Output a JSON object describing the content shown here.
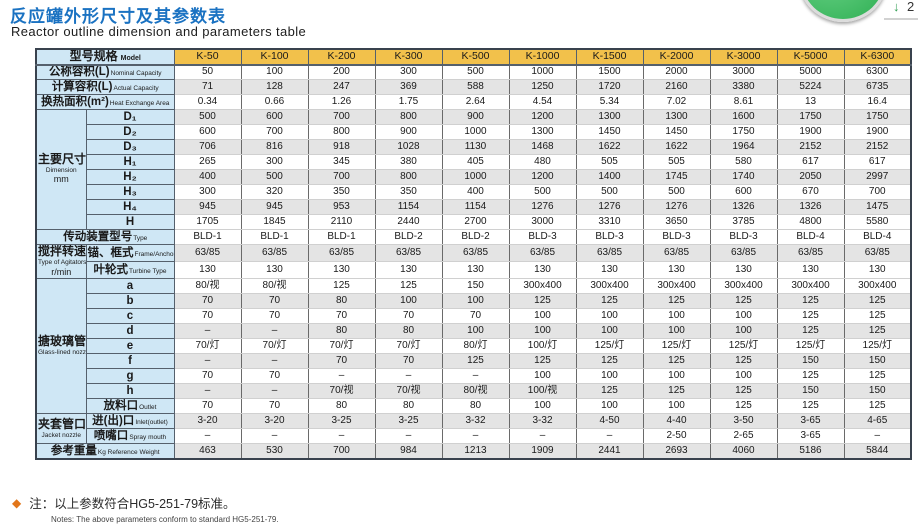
{
  "page": {
    "title_zh": "反应罐外形尺寸及其参数表",
    "title_en": "Reactor outline dimension and parameters table"
  },
  "badge": {
    "arrow": "↓",
    "count": "2"
  },
  "colors": {
    "title_blue": "#1a72c2",
    "header_orange": "#f2c14b",
    "label_blue": "#cfe7f5",
    "stripe_gray": "#e4e4e4",
    "badge_green": "#3fbf63",
    "note_orange": "#e2761b"
  },
  "table": {
    "header": {
      "zh": "型号规格",
      "en": "Model"
    },
    "models": [
      "K-50",
      "K-100",
      "K-200",
      "K-300",
      "K-500",
      "K-1000",
      "K-1500",
      "K-2000",
      "K-3000",
      "K-5000",
      "K-6300"
    ],
    "rows": [
      {
        "label": {
          "zh": "公称容积(L)",
          "en": "Nominal Capacity",
          "wide": true
        },
        "shade": false,
        "values": [
          "50",
          "100",
          "200",
          "300",
          "500",
          "1000",
          "1500",
          "2000",
          "3000",
          "5000",
          "6300"
        ]
      },
      {
        "label": {
          "zh": "计算容积(L)",
          "en": "Actual Capacity",
          "wide": true
        },
        "shade": true,
        "values": [
          "71",
          "128",
          "247",
          "369",
          "588",
          "1250",
          "1720",
          "2160",
          "3380",
          "5224",
          "6735"
        ]
      },
      {
        "label": {
          "zh": "换热面积(m²)",
          "en": "Heat Exchange Area",
          "wide": true
        },
        "shade": false,
        "values": [
          "0.34",
          "0.66",
          "1.26",
          "1.75",
          "2.64",
          "4.54",
          "5.34",
          "7.02",
          "8.61",
          "13",
          "16.4"
        ]
      },
      {
        "group": {
          "zh": "主要尺寸",
          "en": "Dimension",
          "unit": "mm",
          "span": 8
        },
        "label": {
          "zh": "D₁"
        },
        "shade": true,
        "values": [
          "500",
          "600",
          "700",
          "800",
          "900",
          "1200",
          "1300",
          "1300",
          "1600",
          "1750",
          "1750"
        ]
      },
      {
        "label": {
          "zh": "D₂"
        },
        "shade": false,
        "values": [
          "600",
          "700",
          "800",
          "900",
          "1000",
          "1300",
          "1450",
          "1450",
          "1750",
          "1900",
          "1900"
        ]
      },
      {
        "label": {
          "zh": "D₃"
        },
        "shade": true,
        "values": [
          "706",
          "816",
          "918",
          "1028",
          "1130",
          "1468",
          "1622",
          "1622",
          "1964",
          "2152",
          "2152"
        ]
      },
      {
        "label": {
          "zh": "H₁"
        },
        "shade": false,
        "values": [
          "265",
          "300",
          "345",
          "380",
          "405",
          "480",
          "505",
          "505",
          "580",
          "617",
          "617"
        ]
      },
      {
        "label": {
          "zh": "H₂"
        },
        "shade": true,
        "values": [
          "400",
          "500",
          "700",
          "800",
          "1000",
          "1200",
          "1400",
          "1745",
          "1740",
          "2050",
          "2997"
        ]
      },
      {
        "label": {
          "zh": "H₃"
        },
        "shade": false,
        "values": [
          "300",
          "320",
          "350",
          "350",
          "400",
          "500",
          "500",
          "500",
          "600",
          "670",
          "700"
        ]
      },
      {
        "label": {
          "zh": "H₄"
        },
        "shade": true,
        "values": [
          "945",
          "945",
          "953",
          "1154",
          "1154",
          "1276",
          "1276",
          "1276",
          "1326",
          "1326",
          "1475"
        ]
      },
      {
        "label": {
          "zh": "H"
        },
        "shade": false,
        "values": [
          "1705",
          "1845",
          "2110",
          "2440",
          "2700",
          "3000",
          "3310",
          "3650",
          "3785",
          "4800",
          "5580"
        ]
      },
      {
        "label": {
          "zh": "传动装置型号",
          "en": "Type",
          "wide": true
        },
        "shade": false,
        "values": [
          "BLD-1",
          "BLD-1",
          "BLD-1",
          "BLD-2",
          "BLD-2",
          "BLD-3",
          "BLD-3",
          "BLD-3",
          "BLD-3",
          "BLD-4",
          "BLD-4"
        ]
      },
      {
        "group": {
          "zh": "搅拌转速",
          "en": "Type of Agitators",
          "unit": "r/min",
          "span": 2
        },
        "label": {
          "zh": "锚、框式",
          "en": "Frame/Anchor Type"
        },
        "shade": true,
        "values": [
          "63/85",
          "63/85",
          "63/85",
          "63/85",
          "63/85",
          "63/85",
          "63/85",
          "63/85",
          "63/85",
          "63/85",
          "63/85"
        ]
      },
      {
        "label": {
          "zh": "叶轮式",
          "en": "Turbine Type"
        },
        "shade": false,
        "values": [
          "130",
          "130",
          "130",
          "130",
          "130",
          "130",
          "130",
          "130",
          "130",
          "130",
          "130"
        ]
      },
      {
        "group": {
          "zh": "搪玻璃管口",
          "en": "Glass-lined nozzle",
          "unit": "",
          "span": 9
        },
        "label": {
          "zh": "a"
        },
        "shade": false,
        "values": [
          "80/视",
          "80/视",
          "125",
          "125",
          "150",
          "300x400",
          "300x400",
          "300x400",
          "300x400",
          "300x400",
          "300x400"
        ]
      },
      {
        "label": {
          "zh": "b"
        },
        "shade": true,
        "values": [
          "70",
          "70",
          "80",
          "100",
          "100",
          "125",
          "125",
          "125",
          "125",
          "125",
          "125"
        ]
      },
      {
        "label": {
          "zh": "c"
        },
        "shade": false,
        "values": [
          "70",
          "70",
          "70",
          "70",
          "70",
          "100",
          "100",
          "100",
          "100",
          "125",
          "125"
        ]
      },
      {
        "label": {
          "zh": "d"
        },
        "shade": true,
        "values": [
          "–",
          "–",
          "80",
          "80",
          "100",
          "100",
          "100",
          "100",
          "100",
          "125",
          "125"
        ]
      },
      {
        "label": {
          "zh": "e"
        },
        "shade": false,
        "values": [
          "70/灯",
          "70/灯",
          "70/灯",
          "70/灯",
          "80/灯",
          "100/灯",
          "125/灯",
          "125/灯",
          "125/灯",
          "125/灯",
          "125/灯"
        ]
      },
      {
        "label": {
          "zh": "f"
        },
        "shade": true,
        "values": [
          "–",
          "–",
          "70",
          "70",
          "125",
          "125",
          "125",
          "125",
          "125",
          "150",
          "150"
        ]
      },
      {
        "label": {
          "zh": "g"
        },
        "shade": false,
        "values": [
          "70",
          "70",
          "–",
          "–",
          "–",
          "100",
          "100",
          "100",
          "100",
          "125",
          "125"
        ]
      },
      {
        "label": {
          "zh": "h"
        },
        "shade": true,
        "values": [
          "–",
          "–",
          "70/视",
          "70/视",
          "80/视",
          "100/视",
          "125",
          "125",
          "125",
          "150",
          "150"
        ]
      },
      {
        "label": {
          "zh": "放料口",
          "en": "Outlet"
        },
        "shade": false,
        "values": [
          "70",
          "70",
          "80",
          "80",
          "80",
          "100",
          "100",
          "100",
          "125",
          "125",
          "125"
        ]
      },
      {
        "group": {
          "zh": "夹套管口",
          "en": "Jacket nozzle",
          "unit": "",
          "span": 2
        },
        "label": {
          "zh": "进(出)口",
          "en": "Inlet(outlet)"
        },
        "shade": true,
        "values": [
          "3-20",
          "3-20",
          "3-25",
          "3-25",
          "3-32",
          "3-32",
          "4-50",
          "4-40",
          "3-50",
          "3-65",
          "4-65"
        ]
      },
      {
        "label": {
          "zh": "喷嘴口",
          "en": "Spray mouth"
        },
        "shade": false,
        "values": [
          "–",
          "–",
          "–",
          "–",
          "–",
          "–",
          "–",
          "2-50",
          "2-65",
          "3-65",
          "–"
        ]
      },
      {
        "label": {
          "zh": "参考重量",
          "en": "Kg Reference Weight",
          "wide": true
        },
        "shade": true,
        "values": [
          "463",
          "530",
          "700",
          "984",
          "1213",
          "1909",
          "2441",
          "2693",
          "4060",
          "5186",
          "5844"
        ]
      }
    ]
  },
  "note": {
    "diamond": "◆",
    "zh": "注：以上参数符合HG5-251-79标准。",
    "en": "Notes: The above parameters conform to standard HG5-251-79."
  }
}
